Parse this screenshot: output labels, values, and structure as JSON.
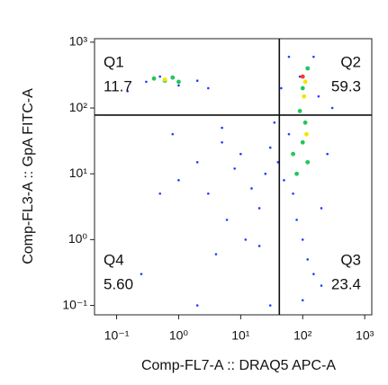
{
  "chart_data": {
    "type": "quadrant-scatter",
    "x_label": "Comp-FL7-A :: DRAQ5 APC-A",
    "y_label": "Comp-FL3-A :: GpA FITC-A",
    "log_x": true,
    "log_y": true,
    "xlim": [
      0.044,
      1300
    ],
    "ylim": [
      0.072,
      1130
    ],
    "xticks": [
      {
        "value": 0.1,
        "label": "10⁻¹"
      },
      {
        "value": 1,
        "label": "10⁰"
      },
      {
        "value": 10,
        "label": "10¹"
      },
      {
        "value": 100,
        "label": "10²"
      },
      {
        "value": 1000,
        "label": "10³"
      }
    ],
    "yticks": [
      {
        "value": 0.1,
        "label": "10⁻¹"
      },
      {
        "value": 1,
        "label": "10⁰"
      },
      {
        "value": 10,
        "label": "10¹"
      },
      {
        "value": 100,
        "label": "10²"
      },
      {
        "value": 1000,
        "label": "10³"
      }
    ],
    "gate_x": 42,
    "gate_y": 78,
    "quadrant_names": [
      "Q1",
      "Q2",
      "Q3",
      "Q4"
    ],
    "values": [
      11.7,
      59.3,
      23.4,
      5.6
    ],
    "value_labels": [
      "11.7",
      "59.3",
      "23.4",
      "5.60"
    ],
    "point_groups": [
      {
        "color": "#1f3cff",
        "x": [
          0.3,
          0.5,
          1,
          2,
          3,
          0.15,
          5,
          2,
          1,
          3,
          8,
          10,
          15,
          20,
          6,
          12,
          25,
          30,
          40,
          50,
          60,
          70,
          80,
          100,
          120,
          150,
          200,
          250,
          300,
          180,
          90,
          60,
          20,
          4,
          0.5,
          0.8,
          200,
          100,
          2,
          30,
          5,
          35,
          45,
          150,
          0.25
        ],
        "y": [
          250,
          300,
          220,
          260,
          200,
          180,
          30,
          15,
          8,
          5,
          12,
          20,
          6,
          3,
          2,
          1,
          10,
          25,
          15,
          8,
          40,
          5,
          2,
          1,
          0.5,
          0.3,
          3,
          20,
          100,
          150,
          300,
          600,
          0.8,
          0.6,
          5,
          40,
          0.2,
          0.12,
          0.1,
          0.1,
          50,
          60,
          200,
          600,
          0.3
        ]
      },
      {
        "color": "#22c55e",
        "x": [
          0.4,
          0.6,
          0.8,
          1,
          100,
          110,
          120,
          100,
          120,
          90,
          70,
          80
        ],
        "y": [
          280,
          260,
          290,
          250,
          30,
          60,
          15,
          200,
          400,
          90,
          20,
          10
        ]
      },
      {
        "color": "#f5e400",
        "x": [
          0.6,
          110,
          105,
          115
        ],
        "y": [
          270,
          250,
          150,
          40
        ]
      },
      {
        "color": "#ff3b1f",
        "x": [
          100
        ],
        "y": [
          300
        ]
      }
    ]
  }
}
